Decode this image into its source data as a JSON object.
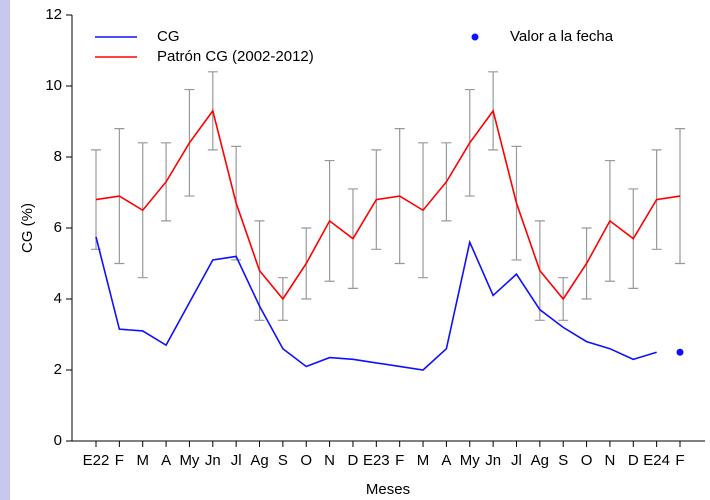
{
  "chart_data": {
    "type": "line",
    "xlabel": "Meses",
    "ylabel": "CG (%)",
    "categories": [
      "E22",
      "F",
      "M",
      "A",
      "My",
      "Jn",
      "Jl",
      "Ag",
      "S",
      "O",
      "N",
      "D",
      "E23",
      "F",
      "M",
      "A",
      "My",
      "Jn",
      "Jl",
      "Ag",
      "S",
      "O",
      "N",
      "D",
      "E24",
      "F"
    ],
    "ylim": [
      0,
      12
    ],
    "yticks": [
      0,
      2,
      4,
      6,
      8,
      10,
      12
    ],
    "series": [
      {
        "name": "CG",
        "color": "#1010ff",
        "values": [
          5.75,
          3.15,
          3.1,
          2.7,
          3.9,
          5.1,
          5.2,
          3.8,
          2.6,
          2.1,
          2.35,
          2.3,
          2.2,
          2.1,
          2.0,
          2.6,
          5.6,
          4.1,
          4.7,
          3.7,
          3.2,
          2.8,
          2.6,
          2.3,
          2.5,
          null
        ]
      },
      {
        "name": "Patrón CG (2002-2012)",
        "color": "#ff0000",
        "error_color": "#999999",
        "values": [
          6.8,
          6.9,
          6.5,
          7.3,
          8.4,
          9.3,
          6.7,
          4.8,
          4.0,
          5.0,
          6.2,
          5.7,
          6.8,
          6.9,
          6.5,
          7.3,
          8.4,
          9.3,
          6.7,
          4.8,
          4.0,
          5.0,
          6.2,
          5.7,
          6.8,
          6.9
        ],
        "upper": [
          8.2,
          8.8,
          8.4,
          8.4,
          9.9,
          10.4,
          8.3,
          6.2,
          4.6,
          6.0,
          7.9,
          7.1,
          8.2,
          8.8,
          8.4,
          8.4,
          9.9,
          10.4,
          8.3,
          6.2,
          4.6,
          6.0,
          7.9,
          7.1,
          8.2,
          8.8
        ],
        "lower": [
          5.4,
          5.0,
          4.6,
          6.2,
          6.9,
          8.2,
          5.1,
          3.4,
          3.4,
          4.0,
          4.5,
          4.3,
          5.4,
          5.0,
          4.6,
          6.2,
          6.9,
          8.2,
          5.1,
          3.4,
          3.4,
          4.0,
          4.5,
          4.3,
          5.4,
          5.0
        ]
      },
      {
        "name": "Valor a la fecha",
        "color": "#1010ff",
        "marker": "dot",
        "values": [
          null,
          null,
          null,
          null,
          null,
          null,
          null,
          null,
          null,
          null,
          null,
          null,
          null,
          null,
          null,
          null,
          null,
          null,
          null,
          null,
          null,
          null,
          null,
          null,
          null,
          2.5
        ]
      }
    ]
  }
}
